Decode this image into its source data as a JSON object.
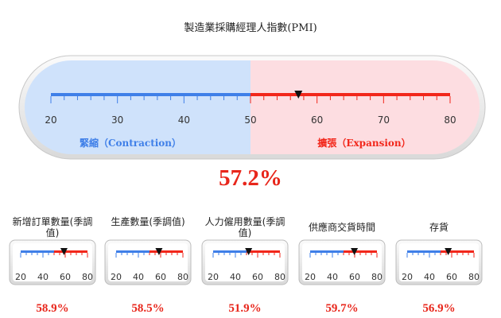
{
  "chart_data": {
    "type": "gauge",
    "title": "製造業採購經理人指數(PMI)",
    "main": {
      "value": 57.2,
      "value_label": "57.2%",
      "range": [
        20,
        80
      ],
      "ticks": [
        "20",
        "30",
        "40",
        "50",
        "60",
        "70",
        "80"
      ],
      "threshold": 50,
      "left_zone_label": "緊縮（Contraction）",
      "right_zone_label": "擴張（Expansion）"
    },
    "sub_gauges": [
      {
        "label": "新增訂單數量(季調值)",
        "value": 58.9,
        "value_label": "58.9%",
        "range": [
          20,
          80
        ],
        "ticks": [
          "20",
          "40",
          "60",
          "80"
        ]
      },
      {
        "label": "生產數量(季調值)",
        "value": 58.5,
        "value_label": "58.5%",
        "range": [
          20,
          80
        ],
        "ticks": [
          "20",
          "40",
          "60",
          "80"
        ]
      },
      {
        "label": "人力僱用數量(季調值)",
        "value": 51.9,
        "value_label": "51.9%",
        "range": [
          20,
          80
        ],
        "ticks": [
          "20",
          "40",
          "60",
          "80"
        ]
      },
      {
        "label": "供應商交貨時間",
        "value": 59.7,
        "value_label": "59.7%",
        "range": [
          20,
          80
        ],
        "ticks": [
          "20",
          "40",
          "60",
          "80"
        ]
      },
      {
        "label": "存貨",
        "value": 56.9,
        "value_label": "56.9%",
        "range": [
          20,
          80
        ],
        "ticks": [
          "20",
          "40",
          "60",
          "80"
        ]
      }
    ],
    "colors": {
      "contraction": "#3f7fe8",
      "expansion": "#f2271b",
      "contraction_bg": "#cfe2fb",
      "expansion_bg": "#fddde1",
      "value_text": "#e8261b"
    }
  }
}
